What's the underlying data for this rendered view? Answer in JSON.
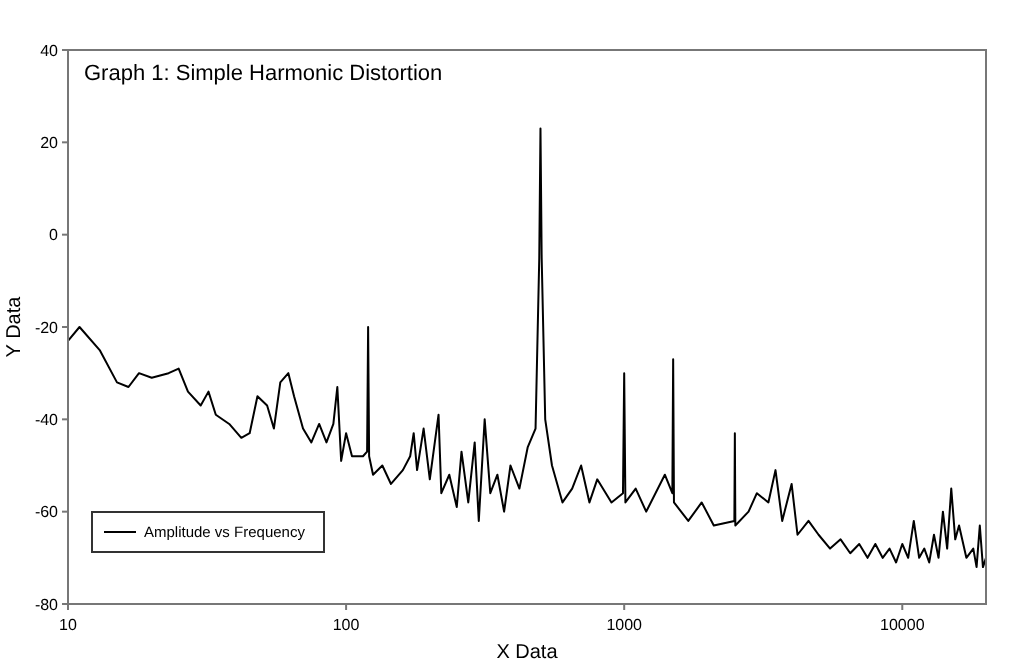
{
  "chart_data": {
    "type": "line",
    "title": "Graph 1: Simple Harmonic Distortion",
    "xlabel": "X Data",
    "ylabel": "Y Data",
    "log": "x",
    "xlim": [
      10,
      20000
    ],
    "xticks": [
      10,
      100,
      1000,
      10000
    ],
    "ylim": [
      -80,
      40
    ],
    "yticks": [
      -80,
      -60,
      -40,
      -20,
      0,
      20,
      40
    ],
    "grid": false,
    "legend": "bottom left",
    "marker": "none",
    "line_style": "solid",
    "x": [
      10,
      11,
      13,
      15,
      16.5,
      18,
      20,
      23,
      25,
      27,
      30,
      32,
      34,
      38,
      42,
      45,
      48,
      52,
      55,
      58,
      62,
      65,
      70,
      75,
      80,
      85,
      90,
      93,
      96,
      100,
      105,
      115,
      119,
      120,
      121,
      125,
      135,
      145,
      160,
      170,
      175,
      180,
      190,
      200,
      215,
      220,
      235,
      250,
      260,
      275,
      290,
      300,
      315,
      330,
      350,
      370,
      390,
      420,
      450,
      480,
      495,
      500,
      505,
      520,
      550,
      600,
      650,
      700,
      750,
      800,
      900,
      990,
      1000,
      1010,
      1100,
      1200,
      1400,
      1490,
      1500,
      1510,
      1700,
      1900,
      2100,
      2490,
      2500,
      2510,
      2800,
      3000,
      3300,
      3500,
      3700,
      4000,
      4200,
      4600,
      5000,
      5500,
      6000,
      6500,
      7000,
      7500,
      8000,
      8500,
      9000,
      9500,
      10000,
      10500,
      11000,
      11500,
      12000,
      12500,
      13000,
      13500,
      14000,
      14500,
      15000,
      15500,
      16000,
      17000,
      18000,
      18500,
      19000,
      19500,
      20000
    ],
    "series": [
      {
        "name": "Amplitude vs Frequency",
        "color": "#000000",
        "values": [
          -23,
          -20,
          -25,
          -32,
          -33,
          -30,
          -31,
          -30,
          -29,
          -34,
          -37,
          -34,
          -39,
          -41,
          -44,
          -43,
          -35,
          -37,
          -42,
          -32,
          -30,
          -35,
          -42,
          -45,
          -41,
          -45,
          -41,
          -33,
          -49,
          -43,
          -48,
          -48,
          -47,
          -20,
          -48,
          -52,
          -50,
          -54,
          -51,
          -48,
          -43,
          -51,
          -42,
          -53,
          -39,
          -56,
          -52,
          -59,
          -47,
          -58,
          -45,
          -62,
          -40,
          -56,
          -52,
          -60,
          -50,
          -55,
          -46,
          -42,
          -5,
          23,
          -5,
          -40,
          -50,
          -58,
          -55,
          -50,
          -58,
          -53,
          -58,
          -56,
          -30,
          -58,
          -55,
          -60,
          -52,
          -56,
          -27,
          -58,
          -62,
          -58,
          -63,
          -62,
          -43,
          -63,
          -60,
          -56,
          -58,
          -51,
          -62,
          -54,
          -65,
          -62,
          -65,
          -68,
          -66,
          -69,
          -67,
          -70,
          -67,
          -70,
          -68,
          -71,
          -67,
          -70,
          -62,
          -70,
          -68,
          -71,
          -65,
          -70,
          -60,
          -68,
          -55,
          -66,
          -63,
          -70,
          -68,
          -72,
          -63,
          -72,
          -70
        ]
      }
    ]
  }
}
